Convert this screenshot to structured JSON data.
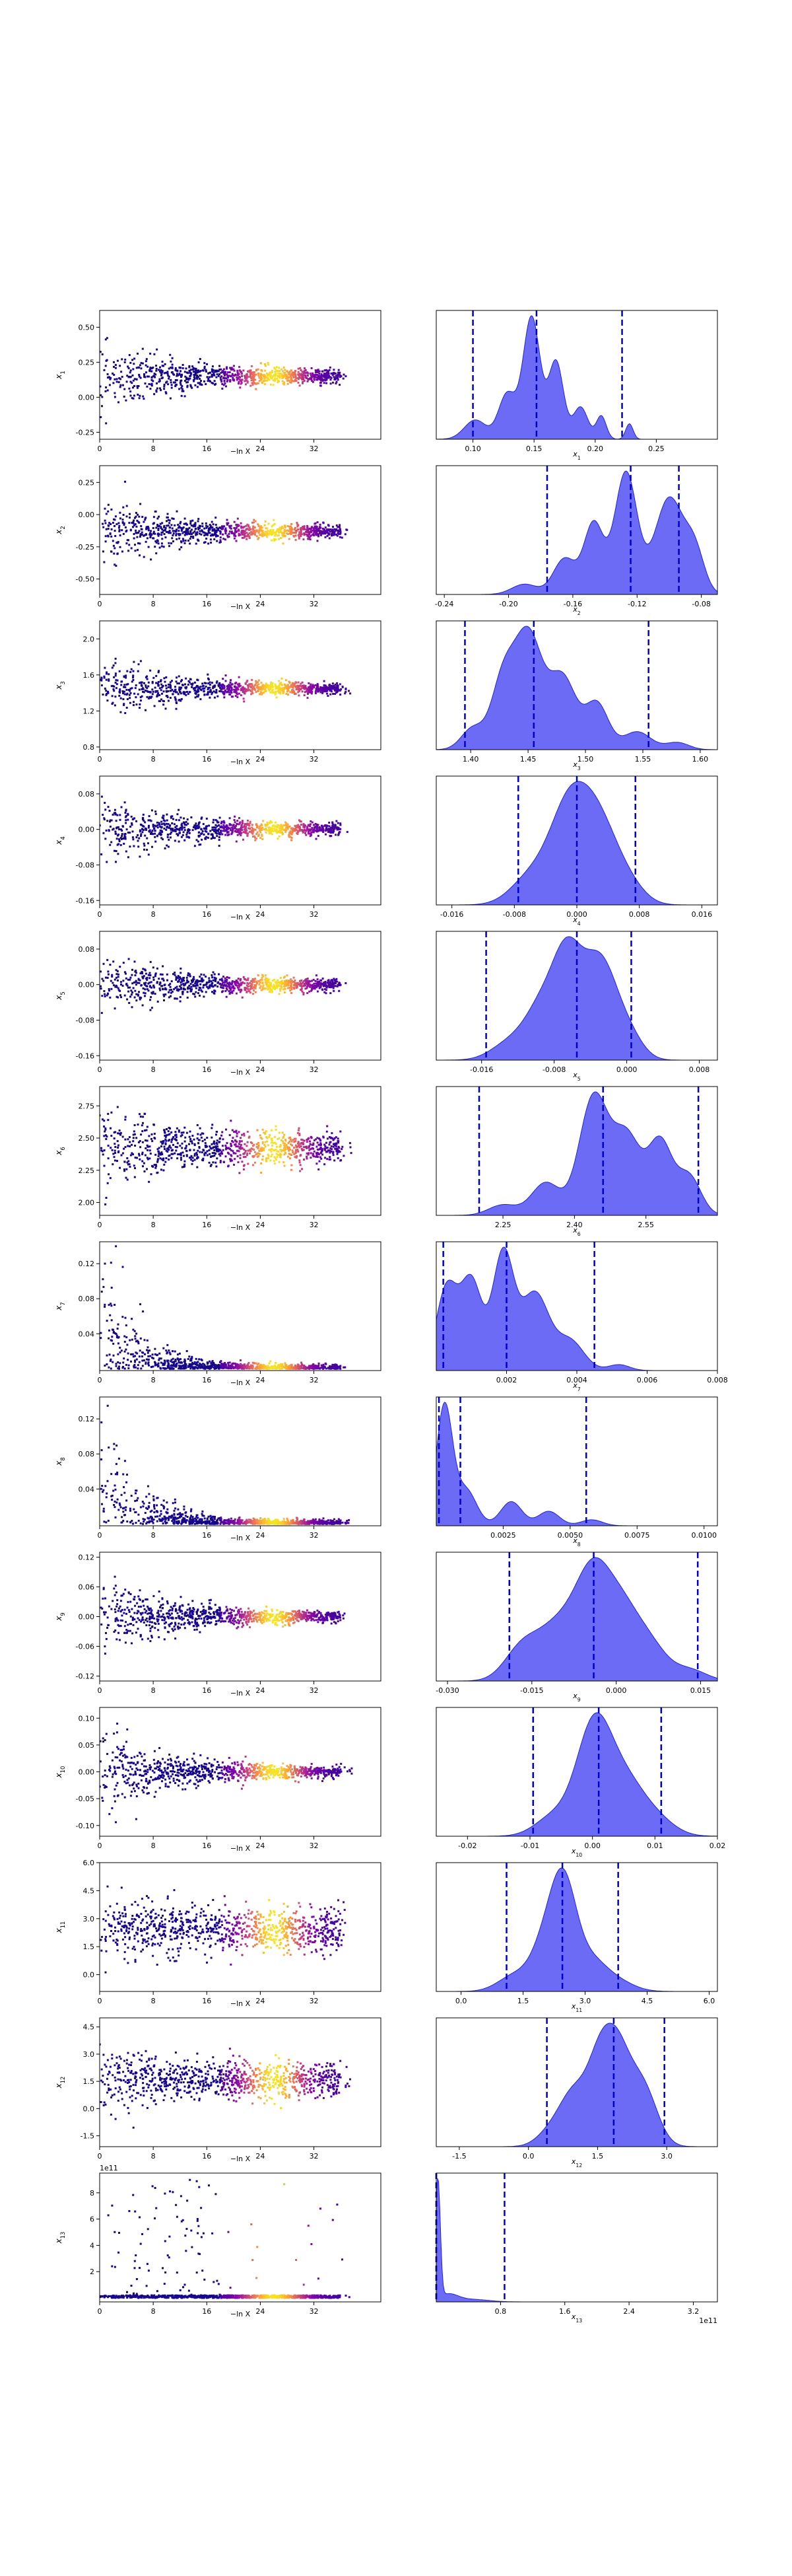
{
  "panels": [
    {
      "label": "x_1",
      "xtrace": [
        0,
        8,
        16,
        24,
        32
      ],
      "yticks": [
        "-0.25",
        "0.00",
        "0.25",
        "0.50"
      ],
      "yrange": [
        -0.3,
        0.62
      ],
      "center": 0.15,
      "spread0": 0.22,
      "spread1": 0.04,
      "dist": {
        "ticks": [
          "0.10",
          "0.15",
          "0.20",
          "0.25"
        ],
        "range": [
          0.07,
          0.3
        ],
        "quantiles": [
          0.1,
          0.152,
          0.222
        ],
        "peaks": [
          [
            0.102,
            0.15,
            0.009
          ],
          [
            0.128,
            0.35,
            0.007
          ],
          [
            0.148,
            0.95,
            0.007
          ],
          [
            0.168,
            0.6,
            0.006
          ],
          [
            0.188,
            0.25,
            0.006
          ],
          [
            0.205,
            0.18,
            0.004
          ],
          [
            0.228,
            0.12,
            0.003
          ]
        ]
      }
    },
    {
      "label": "x_2",
      "xtrace": [
        0,
        8,
        16,
        24,
        32
      ],
      "yticks": [
        "-0.50",
        "-0.25",
        "0.00",
        "0.25"
      ],
      "yrange": [
        -0.62,
        0.38
      ],
      "center": -0.13,
      "spread0": 0.25,
      "spread1": 0.04,
      "dist": {
        "ticks": [
          "-0.24",
          "-0.20",
          "-0.16",
          "-0.12",
          "-0.08"
        ],
        "range": [
          -0.245,
          -0.07
        ],
        "quantiles": [
          -0.176,
          -0.124,
          -0.094
        ],
        "peaks": [
          [
            -0.19,
            0.08,
            0.008
          ],
          [
            -0.165,
            0.28,
            0.007
          ],
          [
            -0.147,
            0.55,
            0.006
          ],
          [
            -0.127,
            0.95,
            0.007
          ],
          [
            -0.1,
            0.75,
            0.009
          ],
          [
            -0.084,
            0.3,
            0.006
          ]
        ]
      }
    },
    {
      "label": "x_3",
      "xtrace": [
        0,
        8,
        16,
        24,
        32
      ],
      "yticks": [
        "0.8",
        "1.2",
        "1.6",
        "2.0"
      ],
      "yrange": [
        0.77,
        2.2
      ],
      "center": 1.45,
      "spread0": 0.35,
      "spread1": 0.05,
      "dist": {
        "ticks": [
          "1.40",
          "1.45",
          "1.50",
          "1.55",
          "1.60"
        ],
        "range": [
          1.37,
          1.615
        ],
        "quantiles": [
          1.395,
          1.455,
          1.555
        ],
        "peaks": [
          [
            1.402,
            0.18,
            0.01
          ],
          [
            1.428,
            0.55,
            0.01
          ],
          [
            1.45,
            0.95,
            0.012
          ],
          [
            1.48,
            0.6,
            0.012
          ],
          [
            1.51,
            0.38,
            0.01
          ],
          [
            1.545,
            0.15,
            0.012
          ],
          [
            1.58,
            0.06,
            0.01
          ]
        ]
      }
    },
    {
      "label": "x_4",
      "xtrace": [
        0,
        8,
        16,
        24,
        32
      ],
      "yticks": [
        "-0.16",
        "-0.08",
        "0.00",
        "0.08"
      ],
      "yrange": [
        -0.17,
        0.12
      ],
      "center": 0.0,
      "spread0": 0.07,
      "spread1": 0.01,
      "dist": {
        "ticks": [
          "-0.016",
          "-0.008",
          "0.000",
          "0.008",
          "0.016"
        ],
        "range": [
          -0.018,
          0.018
        ],
        "quantiles": [
          -0.0075,
          0.0,
          0.0075
        ],
        "peaks": [
          [
            -0.006,
            0.25,
            0.0025
          ],
          [
            -0.001,
            0.9,
            0.0025
          ],
          [
            0.003,
            0.7,
            0.0025
          ],
          [
            0.007,
            0.12,
            0.002
          ]
        ]
      }
    },
    {
      "label": "x_5",
      "xtrace": [
        0,
        8,
        16,
        24,
        32
      ],
      "yticks": [
        "-0.16",
        "-0.08",
        "0.00",
        "0.08"
      ],
      "yrange": [
        -0.17,
        0.12
      ],
      "center": 0.0,
      "spread0": 0.07,
      "spread1": 0.01,
      "dist": {
        "ticks": [
          "-0.016",
          "-0.008",
          "0.000",
          "0.008"
        ],
        "range": [
          -0.021,
          0.01
        ],
        "quantiles": [
          -0.0155,
          -0.0055,
          0.0005
        ],
        "peaks": [
          [
            -0.013,
            0.15,
            0.002
          ],
          [
            -0.009,
            0.55,
            0.002
          ],
          [
            -0.0065,
            0.7,
            0.0015
          ],
          [
            -0.003,
            0.95,
            0.002
          ],
          [
            0.0005,
            0.15,
            0.0015
          ]
        ]
      }
    },
    {
      "label": "x_6",
      "xtrace": [
        0,
        8,
        16,
        24,
        32
      ],
      "yticks": [
        "2.00",
        "2.25",
        "2.50",
        "2.75"
      ],
      "yrange": [
        1.9,
        2.9
      ],
      "center": 2.42,
      "spread0": 0.3,
      "spread1": 0.1,
      "dist": {
        "ticks": [
          "2.25",
          "2.40",
          "2.55"
        ],
        "range": [
          2.11,
          2.7
        ],
        "quantiles": [
          2.2,
          2.46,
          2.66
        ],
        "peaks": [
          [
            2.25,
            0.08,
            0.03
          ],
          [
            2.34,
            0.25,
            0.03
          ],
          [
            2.44,
            0.9,
            0.03
          ],
          [
            2.51,
            0.6,
            0.03
          ],
          [
            2.58,
            0.55,
            0.025
          ],
          [
            2.64,
            0.3,
            0.025
          ]
        ]
      }
    },
    {
      "label": "x_7",
      "xtrace": [
        0,
        8,
        16,
        24,
        32
      ],
      "yticks": [
        "0.04",
        "0.08",
        "0.12"
      ],
      "yrange": [
        -0.002,
        0.145
      ],
      "center": 0.002,
      "spread0": 0.1,
      "spread1": 0.002,
      "dist": {
        "ticks": [
          "0.002",
          "0.004",
          "0.006",
          "0.008"
        ],
        "range": [
          0.0,
          0.008
        ],
        "quantiles": [
          0.0002,
          0.002,
          0.0045
        ],
        "peaks": [
          [
            0.0003,
            0.7,
            0.0003
          ],
          [
            0.001,
            0.75,
            0.0003
          ],
          [
            0.0019,
            0.98,
            0.0003
          ],
          [
            0.0028,
            0.65,
            0.0004
          ],
          [
            0.0038,
            0.25,
            0.0004
          ],
          [
            0.0052,
            0.05,
            0.0003
          ]
        ]
      }
    },
    {
      "label": "x_8",
      "xtrace": [
        0,
        8,
        16,
        24,
        32
      ],
      "yticks": [
        "0.04",
        "0.08",
        "0.12"
      ],
      "yrange": [
        -0.002,
        0.145
      ],
      "center": 0.002,
      "spread0": 0.1,
      "spread1": 0.002,
      "dist": {
        "ticks": [
          "0.0025",
          "0.0050",
          "0.0075",
          "0.0100"
        ],
        "range": [
          0.0,
          0.0105
        ],
        "quantiles": [
          0.0001,
          0.0009,
          0.0056
        ],
        "peaks": [
          [
            0.0003,
            0.98,
            0.0003
          ],
          [
            0.0011,
            0.3,
            0.0004
          ],
          [
            0.0028,
            0.2,
            0.0004
          ],
          [
            0.0042,
            0.12,
            0.0004
          ],
          [
            0.0058,
            0.05,
            0.0004
          ]
        ]
      }
    },
    {
      "label": "x_9",
      "xtrace": [
        0,
        8,
        16,
        24,
        32
      ],
      "yticks": [
        "-0.12",
        "-0.06",
        "0.00",
        "0.06",
        "0.12"
      ],
      "yrange": [
        -0.13,
        0.13
      ],
      "center": 0.0,
      "spread0": 0.08,
      "spread1": 0.008,
      "dist": {
        "ticks": [
          "-0.030",
          "-0.015",
          "0.000",
          "0.015"
        ],
        "range": [
          -0.032,
          0.018
        ],
        "quantiles": [
          -0.019,
          -0.004,
          0.0145
        ],
        "peaks": [
          [
            -0.017,
            0.3,
            0.003
          ],
          [
            -0.01,
            0.6,
            0.004
          ],
          [
            -0.004,
            0.95,
            0.003
          ],
          [
            0.001,
            0.65,
            0.003
          ],
          [
            0.006,
            0.35,
            0.003
          ],
          [
            0.013,
            0.12,
            0.003
          ]
        ]
      }
    },
    {
      "label": "x_10",
      "xtrace": [
        0,
        8,
        16,
        24,
        32
      ],
      "yticks": [
        "-0.10",
        "-0.05",
        "0.00",
        "0.05",
        "0.10"
      ],
      "yrange": [
        -0.12,
        0.12
      ],
      "center": 0.0,
      "spread0": 0.07,
      "spread1": 0.008,
      "dist": {
        "ticks": [
          "-0.02",
          "-0.01",
          "0.00",
          "0.01",
          "0.02"
        ],
        "range": [
          -0.025,
          0.02
        ],
        "quantiles": [
          -0.0095,
          0.001,
          0.011
        ],
        "peaks": [
          [
            -0.006,
            0.3,
            0.003
          ],
          [
            -0.001,
            0.7,
            0.0025
          ],
          [
            0.001,
            0.95,
            0.0025
          ],
          [
            0.005,
            0.75,
            0.003
          ],
          [
            0.01,
            0.25,
            0.003
          ]
        ]
      }
    },
    {
      "label": "x_11",
      "xtrace": [
        0,
        8,
        16,
        24,
        32
      ],
      "yticks": [
        "0.0",
        "1.5",
        "3.0",
        "4.5",
        "6.0"
      ],
      "yrange": [
        -0.9,
        6.0
      ],
      "center": 2.4,
      "spread0": 1.6,
      "spread1": 1.0,
      "dist": {
        "ticks": [
          "0.0",
          "1.5",
          "3.0",
          "4.5",
          "6.0"
        ],
        "range": [
          -0.6,
          6.2
        ],
        "quantiles": [
          1.1,
          2.45,
          3.8
        ],
        "peaks": [
          [
            1.3,
            0.18,
            0.4
          ],
          [
            2.1,
            0.6,
            0.35
          ],
          [
            2.5,
            0.95,
            0.3
          ],
          [
            3.1,
            0.35,
            0.4
          ],
          [
            3.8,
            0.1,
            0.4
          ]
        ]
      }
    },
    {
      "label": "x_12",
      "xtrace": [
        0,
        8,
        16,
        24,
        32
      ],
      "yticks": [
        "-1.5",
        "0.0",
        "1.5",
        "3.0",
        "4.5"
      ],
      "yrange": [
        -2.1,
        5.0
      ],
      "center": 1.6,
      "spread0": 1.6,
      "spread1": 0.9,
      "dist": {
        "ticks": [
          "-1.5",
          "0.0",
          "1.5",
          "3.0"
        ],
        "range": [
          -2.0,
          4.1
        ],
        "quantiles": [
          0.4,
          1.85,
          2.95
        ],
        "peaks": [
          [
            0.5,
            0.15,
            0.3
          ],
          [
            1.0,
            0.5,
            0.3
          ],
          [
            1.5,
            0.55,
            0.25
          ],
          [
            1.9,
            0.95,
            0.3
          ],
          [
            2.5,
            0.55,
            0.3
          ]
        ]
      }
    },
    {
      "label": "x_13",
      "xtrace": [
        0,
        8,
        16,
        24,
        32
      ],
      "yticks": [
        "2",
        "4",
        "6",
        "8"
      ],
      "yrange": [
        -0.3,
        9.5
      ],
      "center": 0.0,
      "spread0": 0,
      "spread1": 0,
      "offset_text": "1e11",
      "dist": {
        "ticks": [
          "0.8",
          "1.6",
          "2.4",
          "3.2"
        ],
        "range": [
          0.0,
          3.5
        ],
        "quantiles": [
          0.0,
          0.0,
          0.85
        ],
        "offset_text": "1e11",
        "peaks": [
          [
            0.02,
            0.98,
            0.03
          ],
          [
            0.15,
            0.06,
            0.12
          ],
          [
            0.45,
            0.02,
            0.2
          ]
        ]
      }
    }
  ],
  "trace_xlabel": "−ln X",
  "dist_xlabels": [
    "x_1",
    "x_2",
    "x_3",
    "x_4",
    "x_5",
    "x_6",
    "x_7",
    "x_8",
    "x_9",
    "x_10",
    "x_11",
    "x_12",
    "x_13"
  ],
  "colors": {
    "dist_fill": "#6b6bf5",
    "dist_line": "#2222dd",
    "quantile": "#0000cc"
  }
}
